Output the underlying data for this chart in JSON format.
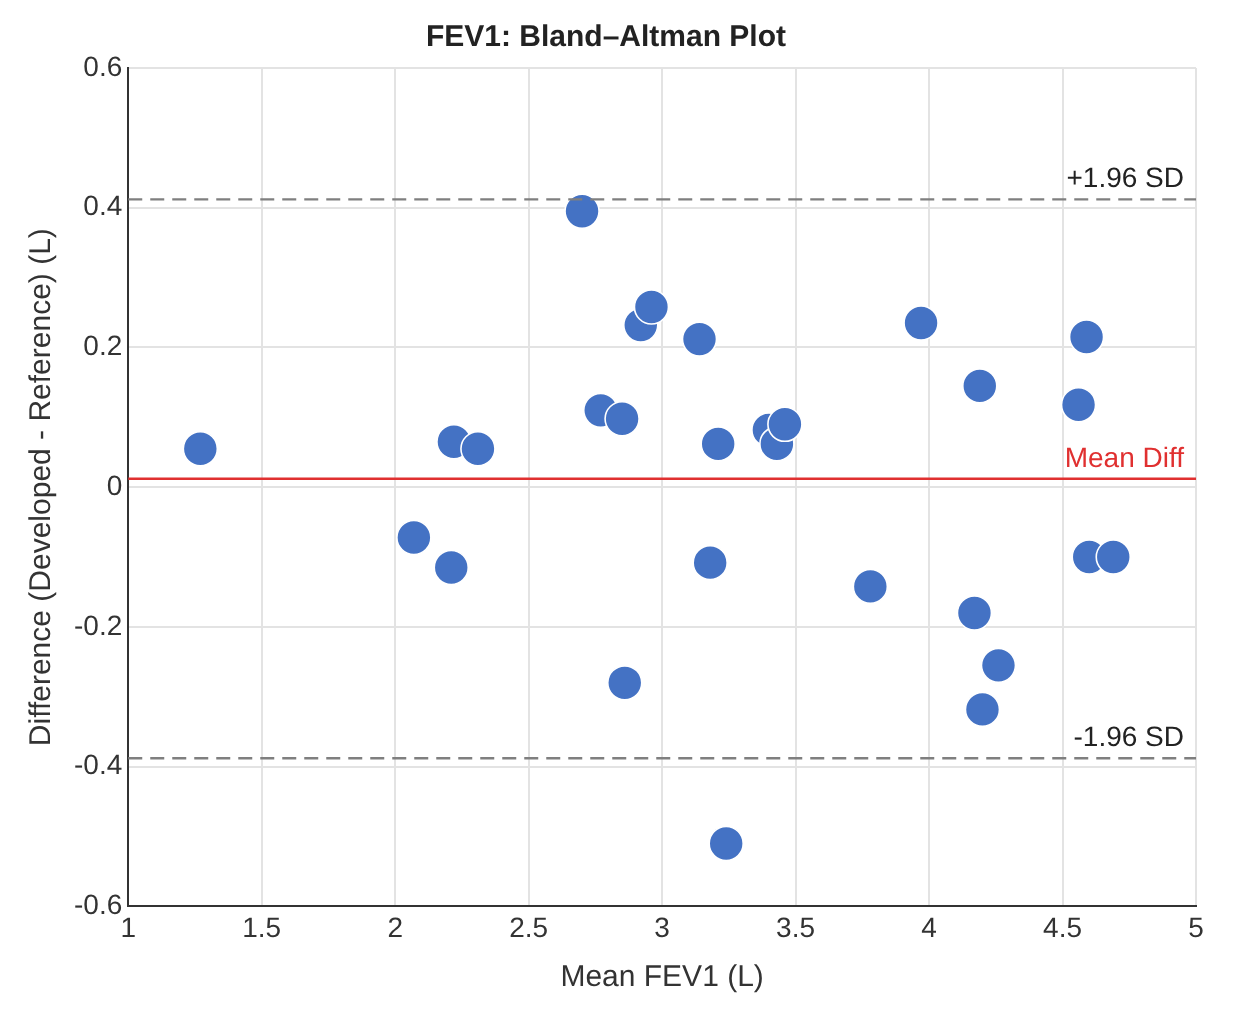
{
  "chart_data": {
    "type": "scatter",
    "title": "FEV1: Bland–Altman Plot",
    "xlabel": "Mean FEV1 (L)",
    "ylabel": "Difference (Developed - Reference) (L)",
    "x": [
      1.27,
      2.07,
      2.21,
      2.22,
      2.31,
      2.7,
      2.77,
      2.85,
      2.86,
      2.92,
      2.96,
      3.14,
      3.18,
      3.21,
      3.24,
      3.4,
      3.43,
      3.46,
      3.78,
      3.97,
      4.17,
      4.19,
      4.2,
      4.26,
      4.56,
      4.59,
      4.6,
      4.69
    ],
    "series": [
      {
        "color": "#4472c4",
        "values": [
          0.055,
          -0.072,
          -0.115,
          0.065,
          0.055,
          0.395,
          0.11,
          0.098,
          -0.28,
          0.232,
          0.258,
          0.212,
          -0.108,
          0.062,
          -0.51,
          0.082,
          0.062,
          0.09,
          -0.142,
          0.235,
          -0.18,
          0.145,
          -0.318,
          -0.255,
          0.118,
          0.215,
          -0.1,
          -0.1
        ]
      }
    ],
    "xlim": [
      1,
      5
    ],
    "xticks": [
      1,
      1.5,
      2,
      2.5,
      3,
      3.5,
      4,
      4.5,
      5
    ],
    "ylim": [
      -0.6,
      0.6
    ],
    "yticks": [
      -0.6,
      -0.4,
      -0.2,
      0,
      0.2,
      0.4,
      0.6
    ],
    "ref_lines": [
      {
        "axis": "y",
        "value": 0.412,
        "label": "+1.96 SD",
        "color": "#7f7f7f",
        "line_style": "dashed"
      },
      {
        "axis": "y",
        "value": 0.012,
        "label": "Mean Diff",
        "color": "#e03030",
        "line_style": "solid"
      },
      {
        "axis": "y",
        "value": -0.388,
        "label": "-1.96 SD",
        "color": "#7f7f7f",
        "line_style": "dashed"
      }
    ],
    "grid": true,
    "marker": "circle",
    "legend": false
  }
}
